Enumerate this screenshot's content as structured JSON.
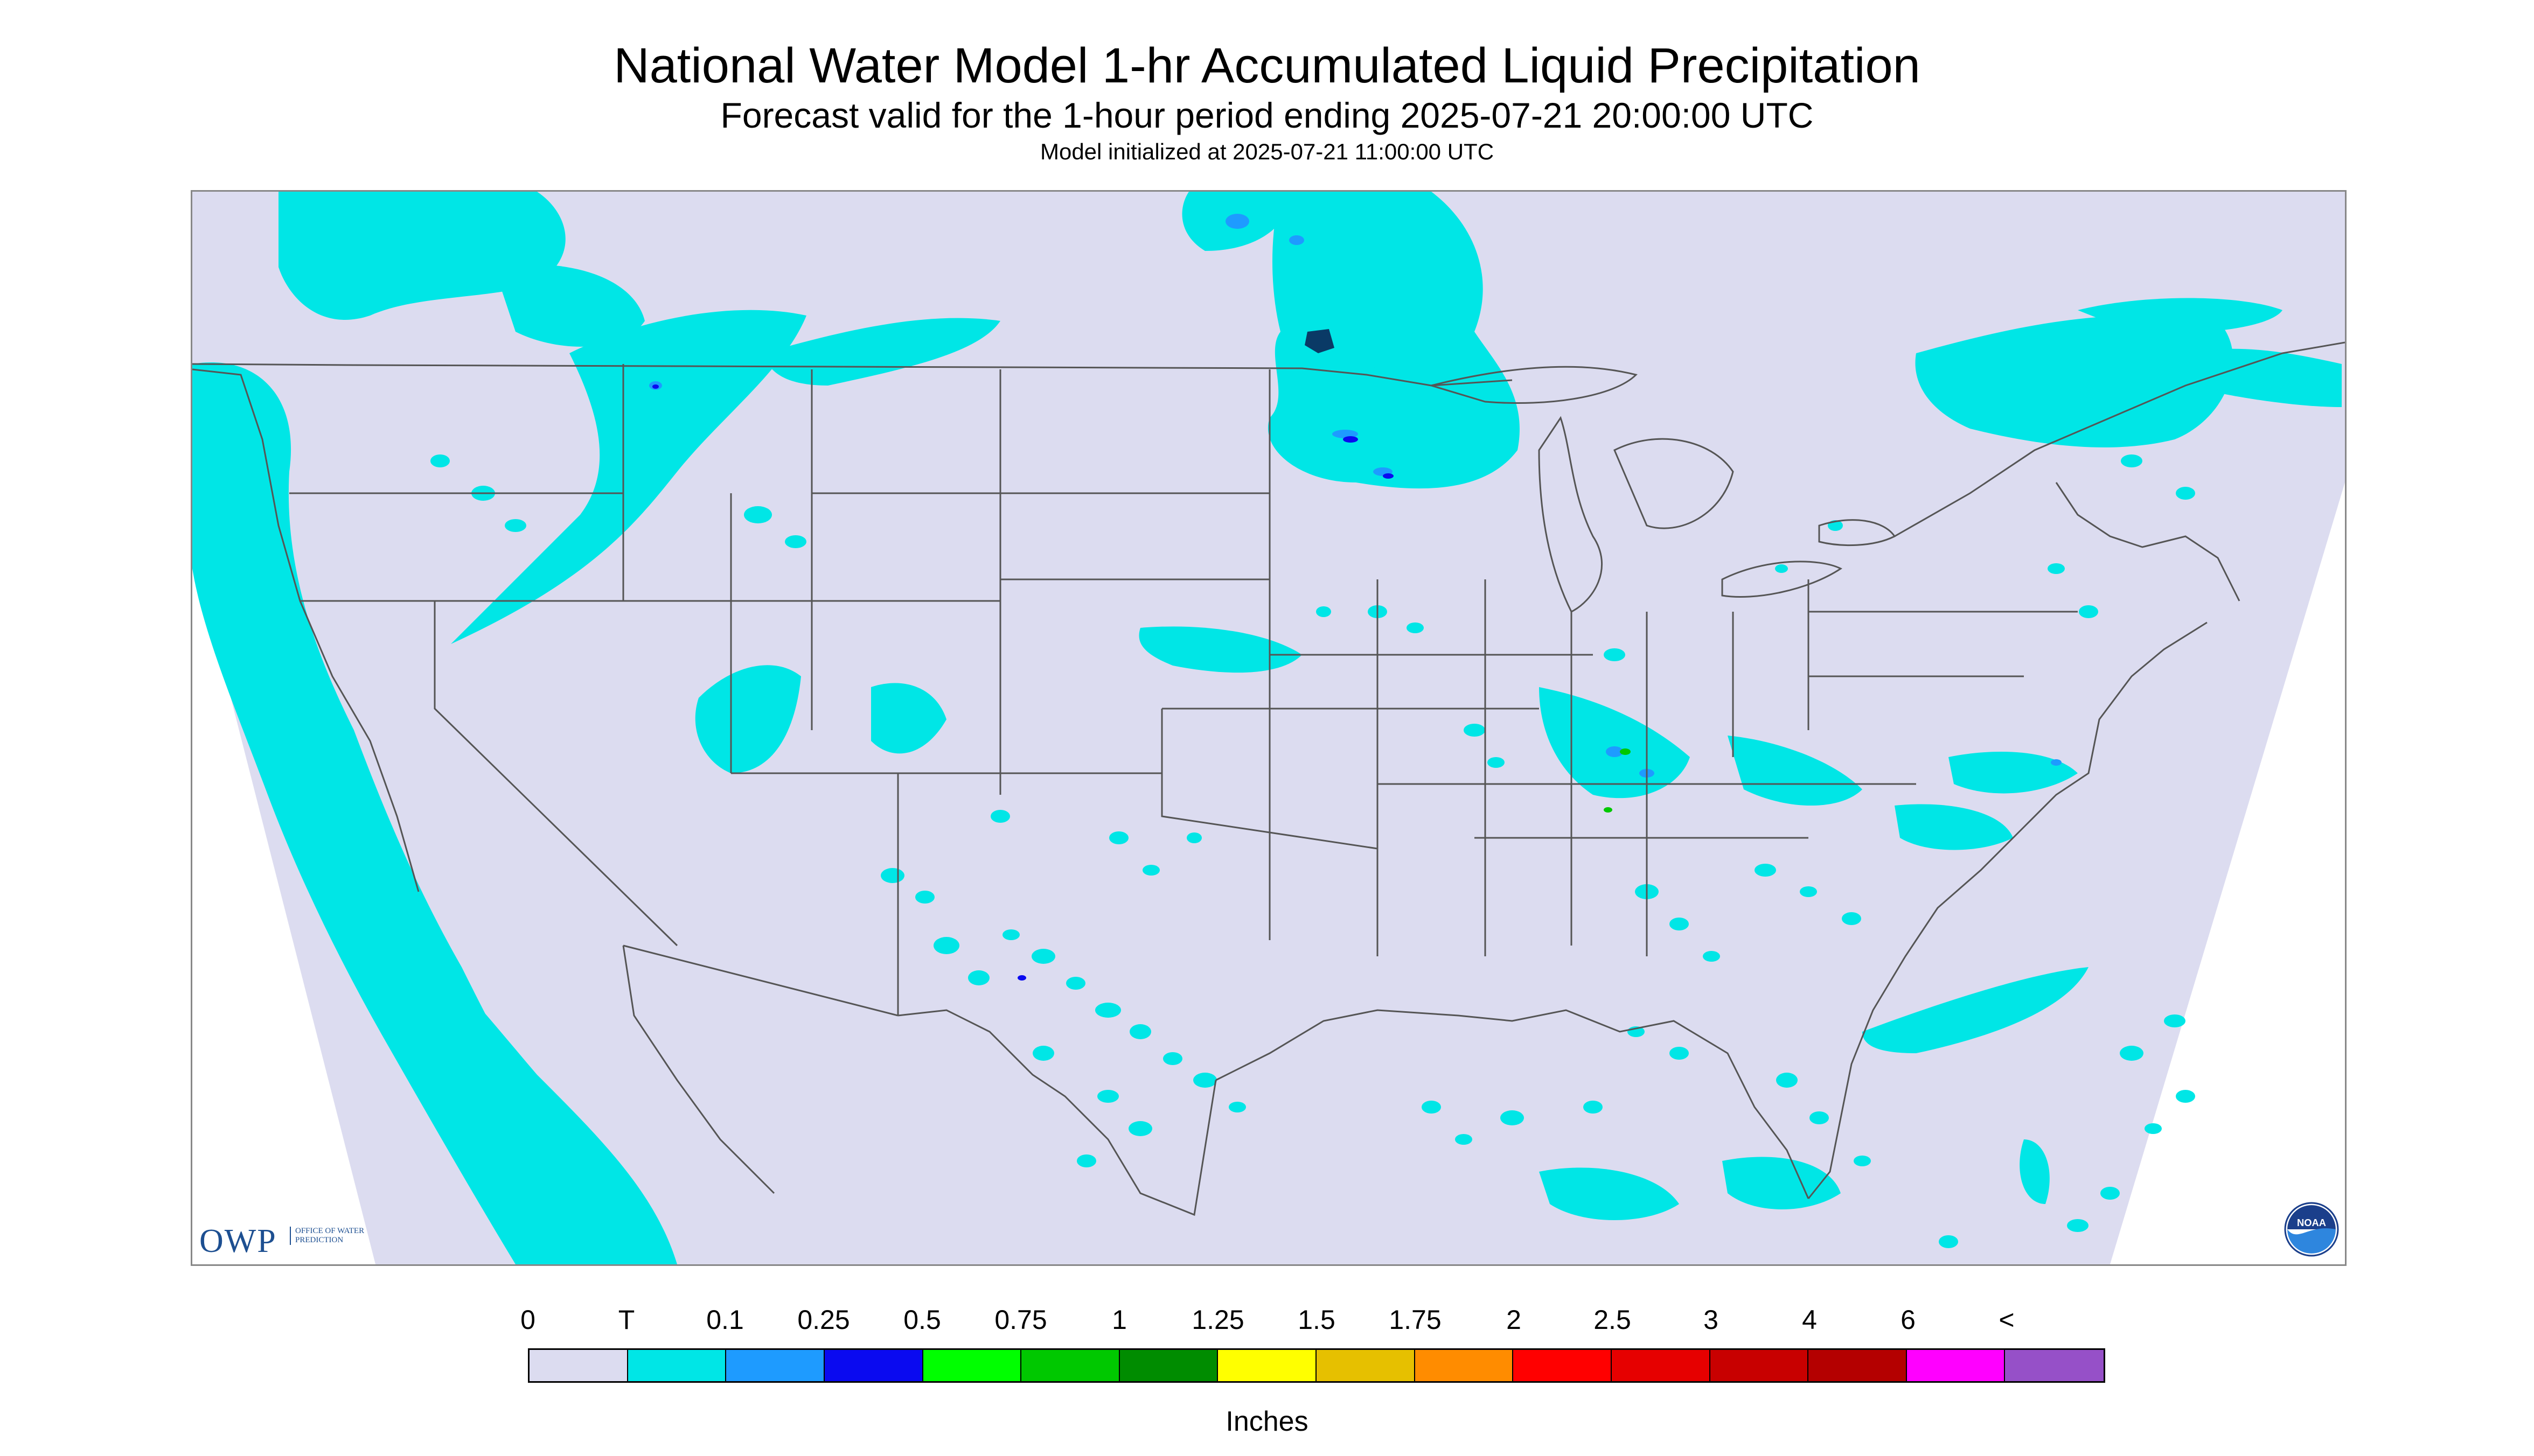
{
  "title": "National Water Model 1-hr Accumulated Liquid Precipitation",
  "subtitle": "Forecast valid for the 1-hour period ending 2025-07-21 20:00:00 UTC",
  "init_line": "Model initialized at 2025-07-21 11:00:00 UTC",
  "logos": {
    "owp_letters": "OWP",
    "owp_subtext": "Office of Water Prediction",
    "noaa_text": "NOAA"
  },
  "colors": {
    "background": "#dcdcf0",
    "trace": "#00e6e6",
    "light": "#1e9bff",
    "medium": "#0a0af0",
    "heavy": "#00c800",
    "boundary": "#555555"
  },
  "legend": {
    "labels": [
      "0",
      "T",
      "0.1",
      "0.25",
      "0.5",
      "0.75",
      "1",
      "1.25",
      "1.5",
      "1.75",
      "2",
      "2.5",
      "3",
      "4",
      "6",
      "<"
    ],
    "colors": [
      "#dcdcf0",
      "#00e6e6",
      "#1e9bff",
      "#0a0af0",
      "#00ff00",
      "#00c800",
      "#008c00",
      "#ffff00",
      "#e6c000",
      "#ff8c00",
      "#ff0000",
      "#e60000",
      "#c80000",
      "#b40000",
      "#ff00ff",
      "#9650c8"
    ],
    "units": "Inches"
  }
}
